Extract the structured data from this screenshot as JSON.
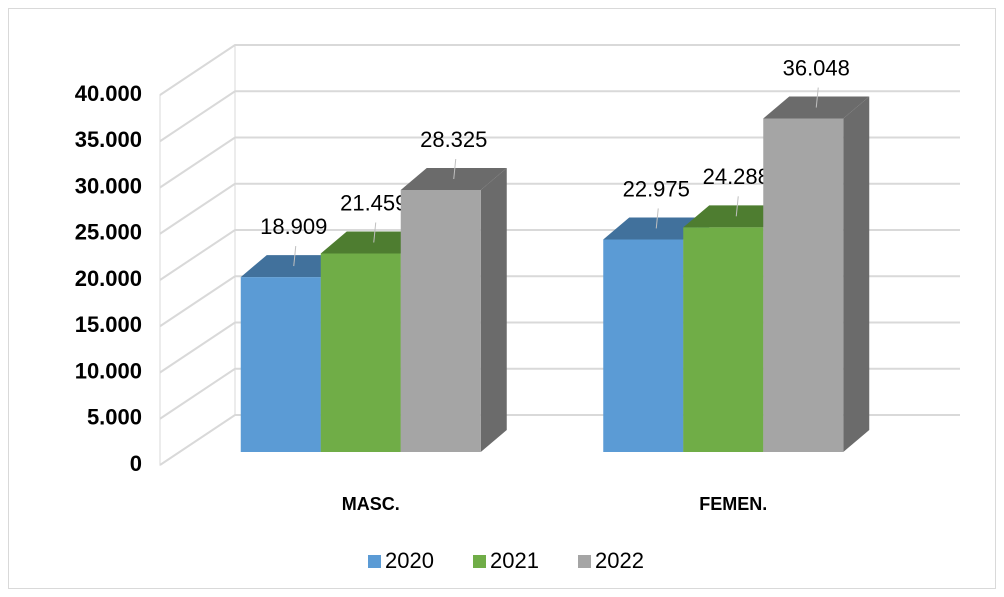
{
  "chart_data": {
    "type": "bar3d",
    "categories": [
      "MASC.",
      "FEMEN."
    ],
    "series": [
      {
        "name": "2020",
        "color": "#5b9bd5",
        "side": "#41719c",
        "values": [
          18909,
          22975
        ],
        "value_labels": [
          "18.909",
          "22.975"
        ]
      },
      {
        "name": "2021",
        "color": "#70ad47",
        "side": "#4e7d30",
        "values": [
          21459,
          24288
        ],
        "value_labels": [
          "21.459",
          "24.288"
        ]
      },
      {
        "name": "2022",
        "color": "#a5a5a5",
        "side": "#6b6b6b",
        "values": [
          28325,
          36048
        ],
        "value_labels": [
          "28.325",
          "36.048"
        ]
      }
    ],
    "ylim": [
      0,
      40000
    ],
    "yticks": [
      {
        "value": 0,
        "label": "0"
      },
      {
        "value": 5000,
        "label": "5.000"
      },
      {
        "value": 10000,
        "label": "10.000"
      },
      {
        "value": 15000,
        "label": "15.000"
      },
      {
        "value": 20000,
        "label": "20.000"
      },
      {
        "value": 25000,
        "label": "25.000"
      },
      {
        "value": 30000,
        "label": "30.000"
      },
      {
        "value": 35000,
        "label": "35.000"
      },
      {
        "value": 40000,
        "label": "40.000"
      }
    ],
    "grid": true,
    "legend": "bottom"
  }
}
